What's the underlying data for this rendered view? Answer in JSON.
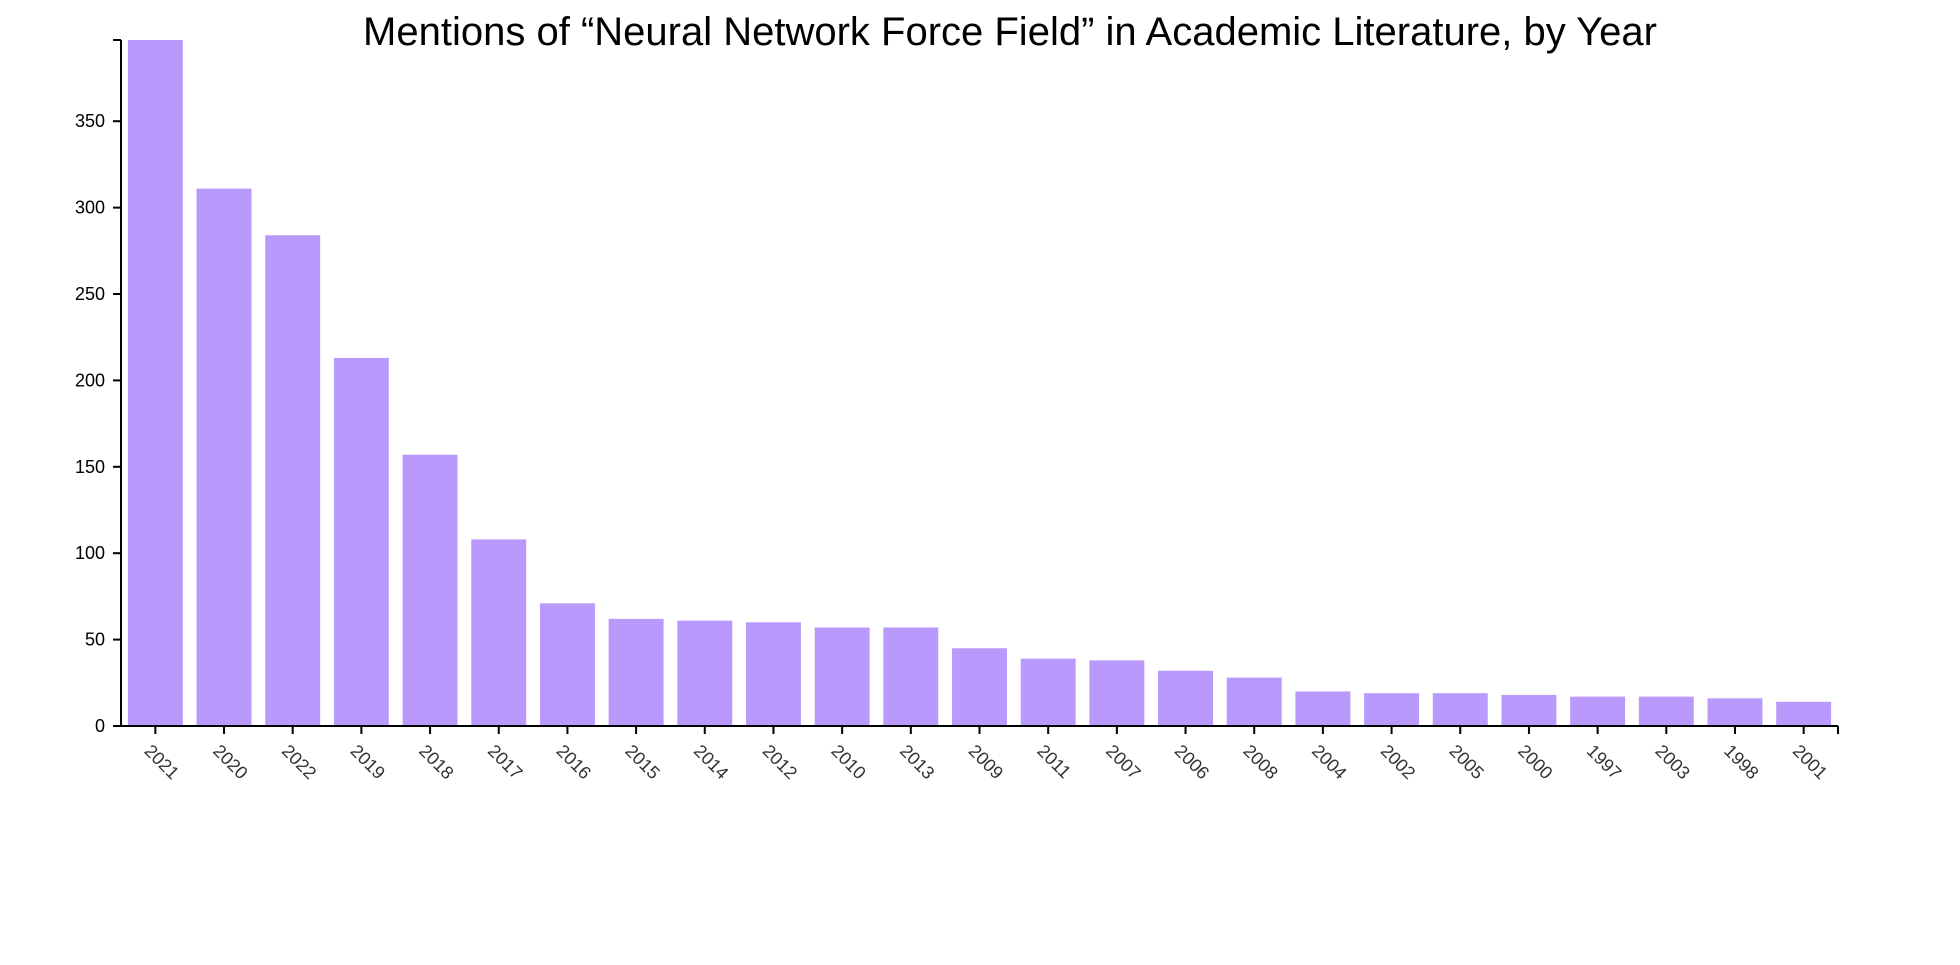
{
  "chart_data": {
    "type": "bar",
    "title": "Mentions of “Neural Network Force Field” in Academic Literature, by Year",
    "xlabel": "",
    "ylabel": "",
    "categories": [
      "2021",
      "2020",
      "2022",
      "2019",
      "2018",
      "2017",
      "2016",
      "2015",
      "2014",
      "2012",
      "2010",
      "2013",
      "2009",
      "2011",
      "2007",
      "2006",
      "2008",
      "2004",
      "2002",
      "2005",
      "2000",
      "1997",
      "2003",
      "1998",
      "2001"
    ],
    "values": [
      397,
      311,
      284,
      213,
      157,
      108,
      71,
      62,
      61,
      60,
      57,
      57,
      45,
      39,
      38,
      32,
      28,
      20,
      19,
      19,
      18,
      17,
      17,
      16,
      14
    ],
    "ylim": [
      0,
      397
    ],
    "yticks": [
      0,
      50,
      100,
      150,
      200,
      250,
      300,
      350
    ],
    "grid": false,
    "legend": "none",
    "bar_color": "#b99afc",
    "axis_color": "#000000"
  }
}
